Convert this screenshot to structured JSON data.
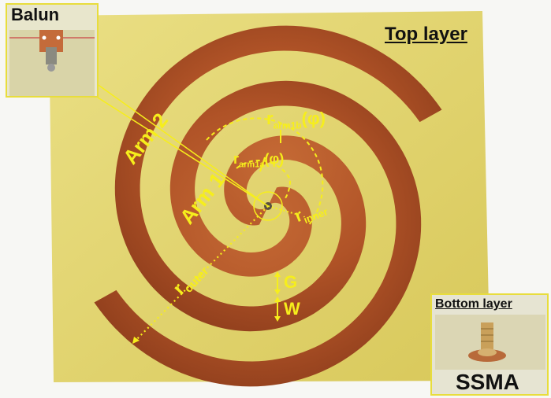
{
  "labels": {
    "top_layer": "Top layer",
    "bottom_layer": "Bottom layer",
    "balun": "Balun",
    "ssma": "SSMA",
    "arm1": "Arm 1",
    "arm2": "Arm 2",
    "r_arm1b": "r",
    "r_arm1b_sub": "arm1b",
    "r_arm1b_phi": "(φ)",
    "r_arm1a": "r",
    "r_arm1a_sub": "arm1a",
    "r_arm1a_phi": "(φ)",
    "r_inner": "r",
    "r_inner_sub": "inner",
    "r_outer": "r",
    "r_outer_sub": "outer",
    "gap": "G",
    "width": "W"
  },
  "colors": {
    "substrate": "#e6d96a",
    "copper": "#b5582a",
    "annotation": "#f6ee1c",
    "inset_border": "#e8dd3c"
  }
}
